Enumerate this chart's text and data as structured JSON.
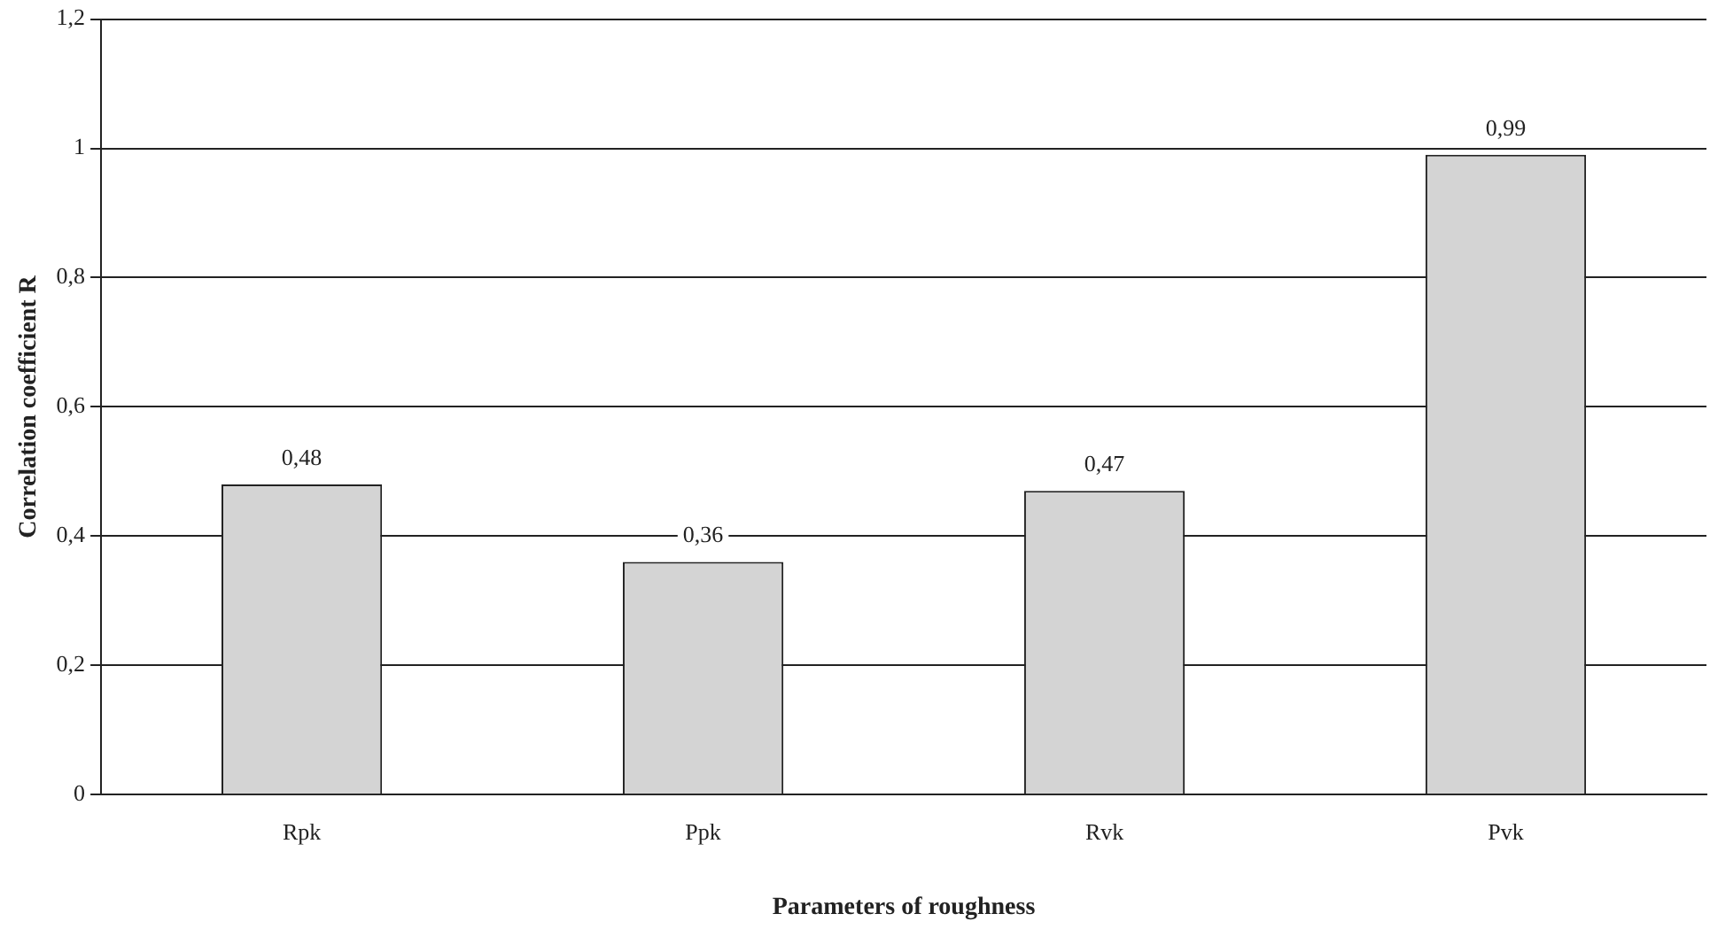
{
  "chart_data": {
    "type": "bar",
    "xlabel": "Parameters of roughness",
    "ylabel": "Correlation coefficient R",
    "categories": [
      "Rpk",
      "Ppk",
      "Rvk",
      "Pvk"
    ],
    "values": [
      0.48,
      0.36,
      0.47,
      0.99
    ],
    "value_labels": [
      "0,48",
      "0,36",
      "0,47",
      "0,99"
    ],
    "color": "#d4d4d4",
    "ylim": [
      0,
      1.2
    ],
    "yticks": [
      0,
      {
        "value": 0.2,
        "label": "0,2"
      },
      {
        "value": 0.4,
        "label": "0,4"
      },
      {
        "value": 0.6,
        "label": "0,6"
      },
      {
        "value": 0.8,
        "label": "0,8"
      },
      1,
      {
        "value": 1.2,
        "label": "1,2"
      }
    ],
    "grid": "y",
    "legend": false
  }
}
